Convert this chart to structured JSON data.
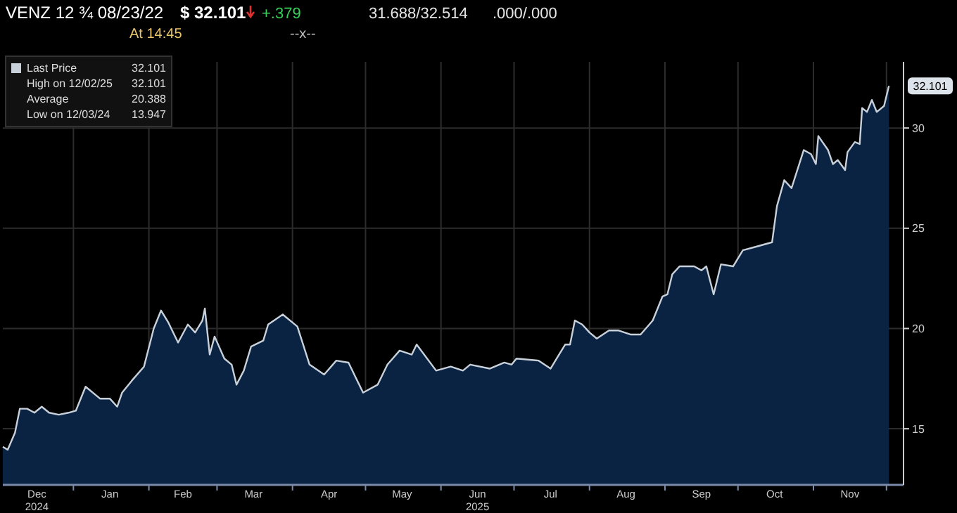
{
  "chart_data": {
    "type": "area",
    "title": "VENZ 12 ¾ 08/23/22",
    "annotations": [
      "$ 32.101",
      "+.379",
      "31.688/32.514",
      ".000/.000",
      "At 14:45",
      "--x--",
      "32.101",
      "High on 12/02/25 32.101",
      "Average 20.388",
      "Low on 12/03/24 13.947",
      {
        "text": "32.101",
        "x": "2025-12-02",
        "y": 32.101
      }
    ],
    "x": [
      "2024-12-03",
      "2024-12-05",
      "2024-12-08",
      "2024-12-10",
      "2024-12-13",
      "2024-12-16",
      "2024-12-19",
      "2024-12-22",
      "2024-12-26",
      "2024-12-30",
      "2025-01-02",
      "2025-01-06",
      "2025-01-12",
      "2025-01-16",
      "2025-01-19",
      "2025-01-21",
      "2025-01-25",
      "2025-01-30",
      "2025-02-03",
      "2025-02-06",
      "2025-02-09",
      "2025-02-13",
      "2025-02-17",
      "2025-02-20",
      "2025-02-23",
      "2025-02-24",
      "2025-02-26",
      "2025-02-28",
      "2025-03-04",
      "2025-03-07",
      "2025-03-09",
      "2025-03-12",
      "2025-03-15",
      "2025-03-20",
      "2025-03-22",
      "2025-03-28",
      "2025-04-03",
      "2025-04-08",
      "2025-04-14",
      "2025-04-19",
      "2025-04-24",
      "2025-04-30",
      "2025-05-06",
      "2025-05-10",
      "2025-05-15",
      "2025-05-20",
      "2025-05-22",
      "2025-05-30",
      "2025-06-05",
      "2025-06-10",
      "2025-06-13",
      "2025-06-21",
      "2025-06-27",
      "2025-06-30",
      "2025-07-02",
      "2025-07-11",
      "2025-07-16",
      "2025-07-22",
      "2025-07-24",
      "2025-07-26",
      "2025-07-29",
      "2025-08-01",
      "2025-08-04",
      "2025-08-09",
      "2025-08-13",
      "2025-08-18",
      "2025-08-22",
      "2025-08-27",
      "2025-08-31",
      "2025-09-02",
      "2025-09-04",
      "2025-09-07",
      "2025-09-13",
      "2025-09-16",
      "2025-09-18",
      "2025-09-21",
      "2025-09-24",
      "2025-09-29",
      "2025-10-03",
      "2025-10-09",
      "2025-10-15",
      "2025-10-17",
      "2025-10-20",
      "2025-10-23",
      "2025-10-28",
      "2025-10-31",
      "2025-11-02",
      "2025-11-03",
      "2025-11-07",
      "2025-11-09",
      "2025-11-11",
      "2025-11-14",
      "2025-11-15",
      "2025-11-18",
      "2025-11-20",
      "2025-11-21",
      "2025-11-23",
      "2025-11-25",
      "2025-11-27",
      "2025-11-30",
      "2025-12-02"
    ],
    "series": [
      {
        "name": "Last Price",
        "color": "#c8d0da",
        "values": [
          14.1,
          13.95,
          14.8,
          16.0,
          16.0,
          15.8,
          16.1,
          15.8,
          15.7,
          15.8,
          15.9,
          17.1,
          16.5,
          16.5,
          16.1,
          16.8,
          17.4,
          18.1,
          20.0,
          20.9,
          20.3,
          19.3,
          20.2,
          19.8,
          20.4,
          21.0,
          18.7,
          19.6,
          18.5,
          18.2,
          17.2,
          17.9,
          19.1,
          19.4,
          20.2,
          20.7,
          20.1,
          18.2,
          17.7,
          18.4,
          18.3,
          16.8,
          17.2,
          18.2,
          18.9,
          18.7,
          19.2,
          17.9,
          18.1,
          17.9,
          18.2,
          18.0,
          18.3,
          18.2,
          18.5,
          18.4,
          18.0,
          19.2,
          19.2,
          20.4,
          20.2,
          19.8,
          19.5,
          19.9,
          19.9,
          19.7,
          19.7,
          20.4,
          21.6,
          21.7,
          22.7,
          23.1,
          23.1,
          22.9,
          23.1,
          21.7,
          23.2,
          23.1,
          23.9,
          24.1,
          24.3,
          26.1,
          27.4,
          27.0,
          28.9,
          28.7,
          28.2,
          29.6,
          28.9,
          28.2,
          28.4,
          27.9,
          28.8,
          29.3,
          29.2,
          31.0,
          30.8,
          31.4,
          30.8,
          31.1,
          32.101
        ]
      }
    ],
    "xlim": [
      "2024-12-03",
      "2025-12-08"
    ],
    "ylim": [
      12.2,
      33.3
    ],
    "yticks": [
      15,
      20,
      25,
      30
    ],
    "xticks": [
      {
        "value": "2025-01-01",
        "label": null
      },
      {
        "value": "2025-02-01",
        "label": null
      },
      {
        "value": "2025-03-01",
        "label": null
      },
      {
        "value": "2025-04-01",
        "label": null
      },
      {
        "value": "2025-05-01",
        "label": null
      },
      {
        "value": "2025-06-01",
        "label": null
      },
      {
        "value": "2025-07-01",
        "label": null
      },
      {
        "value": "2025-08-01",
        "label": null
      },
      {
        "value": "2025-09-01",
        "label": null
      },
      {
        "value": "2025-10-01",
        "label": null
      },
      {
        "value": "2025-11-01",
        "label": null
      },
      {
        "value": "2025-12-01",
        "label": null
      },
      {
        "value": "2024-12-17",
        "label": "Dec\n2024"
      },
      {
        "value": "2025-01-16",
        "label": "Jan"
      },
      {
        "value": "2025-02-15",
        "label": "Feb"
      },
      {
        "value": "2025-03-16",
        "label": "Mar"
      },
      {
        "value": "2025-04-16",
        "label": "Apr"
      },
      {
        "value": "2025-05-16",
        "label": "May"
      },
      {
        "value": "2025-06-16",
        "label": "Jun\n2025"
      },
      {
        "value": "2025-07-16",
        "label": "Jul"
      },
      {
        "value": "2025-08-16",
        "label": "Aug"
      },
      {
        "value": "2025-09-16",
        "label": "Sep"
      },
      {
        "value": "2025-10-16",
        "label": "Oct"
      },
      {
        "value": "2025-11-16",
        "label": "Nov"
      }
    ],
    "grid": true,
    "legend": "top left"
  }
}
